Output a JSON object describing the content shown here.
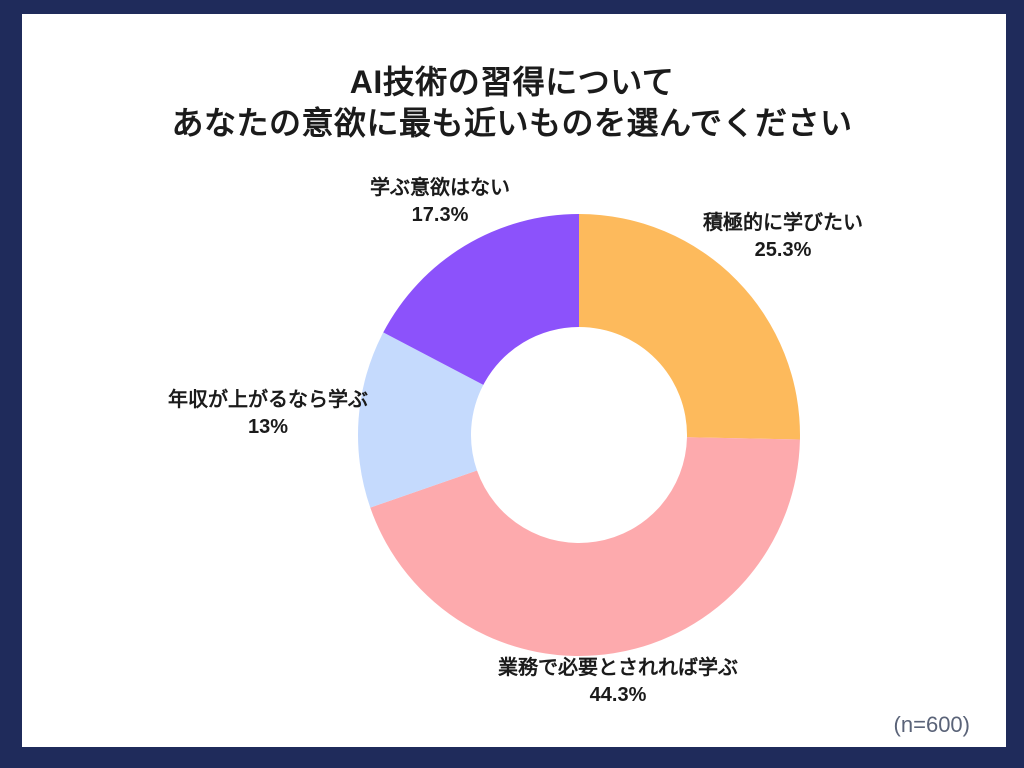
{
  "page": {
    "frame_color": "#1f2b5b",
    "sheet_color": "#ffffff"
  },
  "title": {
    "line1": "AI技術の習得について",
    "line2": "あなたの意欲に最も近いものを選んでください"
  },
  "sample_note": "(n=600)",
  "chart_data": {
    "type": "pie",
    "variant": "donut",
    "title": "AI技術の習得について あなたの意欲に最も近いものを選んでください",
    "start_angle_deg": 0,
    "direction": "clockwise",
    "inner_radius_ratio": 0.49,
    "legend_position": "outside-labels",
    "segments": [
      {
        "label": "積極的に学びたい",
        "value": 25.3,
        "display": "25.3%",
        "color": "#fdba5c"
      },
      {
        "label": "業務で必要とされれば学ぶ",
        "value": 44.3,
        "display": "44.3%",
        "color": "#fdaaad"
      },
      {
        "label": "年収が上がるなら学ぶ",
        "value": 13,
        "display": "13%",
        "color": "#c5dafd"
      },
      {
        "label": "学ぶ意欲はない",
        "value": 17.3,
        "display": "17.3%",
        "color": "#8c52fb"
      }
    ]
  }
}
